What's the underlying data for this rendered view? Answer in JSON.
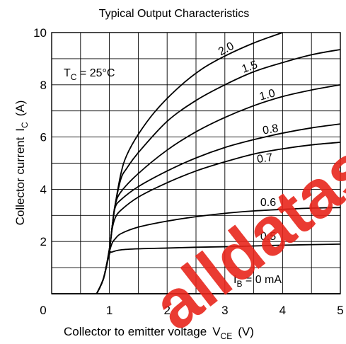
{
  "chart_data": {
    "type": "line",
    "title": "Typical Output Characteristics",
    "xlabel": "Collector to emitter voltage",
    "xlabel_symbol": "V",
    "xlabel_sub": "CE",
    "xlabel_unit": "(V)",
    "ylabel": "Collector current",
    "ylabel_symbol": "I",
    "ylabel_sub": "C",
    "ylabel_unit": "(A)",
    "xlim": [
      0,
      5
    ],
    "ylim": [
      0,
      10
    ],
    "x_ticks": [
      "0",
      "1",
      "2",
      "3",
      "4",
      "5"
    ],
    "y_ticks": [
      "2",
      "4",
      "6",
      "8",
      "10"
    ],
    "grid": true,
    "grid_x_step": 0.5,
    "grid_y_step": 1,
    "annotation": {
      "symbol": "T",
      "sub": "C",
      "text": " = 25°C"
    },
    "series": [
      {
        "label": "2.0",
        "points": [
          [
            0.78,
            0
          ],
          [
            0.9,
            0.6
          ],
          [
            1.0,
            1.7
          ],
          [
            1.05,
            2.6
          ],
          [
            1.1,
            3.4
          ],
          [
            1.2,
            4.6
          ],
          [
            1.3,
            5.3
          ],
          [
            1.5,
            6.1
          ],
          [
            1.8,
            7.0
          ],
          [
            2.2,
            7.9
          ],
          [
            2.6,
            8.6
          ],
          [
            3.0,
            9.1
          ],
          [
            3.5,
            9.6
          ],
          [
            4.0,
            10.0
          ]
        ]
      },
      {
        "label": "1.5",
        "points": [
          [
            0.78,
            0
          ],
          [
            0.9,
            0.6
          ],
          [
            1.0,
            1.7
          ],
          [
            1.05,
            2.6
          ],
          [
            1.1,
            3.4
          ],
          [
            1.2,
            4.4
          ],
          [
            1.3,
            4.8
          ],
          [
            1.5,
            5.4
          ],
          [
            2.0,
            6.6
          ],
          [
            2.5,
            7.4
          ],
          [
            3.0,
            8.0
          ],
          [
            3.5,
            8.5
          ],
          [
            4.0,
            8.85
          ],
          [
            4.5,
            9.15
          ],
          [
            5.0,
            9.35
          ]
        ]
      },
      {
        "label": "1.0",
        "points": [
          [
            0.78,
            0
          ],
          [
            0.9,
            0.6
          ],
          [
            1.0,
            1.7
          ],
          [
            1.05,
            2.6
          ],
          [
            1.1,
            3.4
          ],
          [
            1.2,
            3.9
          ],
          [
            1.5,
            4.6
          ],
          [
            2.0,
            5.5
          ],
          [
            2.5,
            6.2
          ],
          [
            3.0,
            6.75
          ],
          [
            3.5,
            7.2
          ],
          [
            4.0,
            7.55
          ],
          [
            4.5,
            7.8
          ],
          [
            5.0,
            8.0
          ]
        ]
      },
      {
        "label": "0.8",
        "points": [
          [
            0.78,
            0
          ],
          [
            0.9,
            0.6
          ],
          [
            1.0,
            1.7
          ],
          [
            1.05,
            2.6
          ],
          [
            1.1,
            3.3
          ],
          [
            1.2,
            3.6
          ],
          [
            1.5,
            4.1
          ],
          [
            2.0,
            4.7
          ],
          [
            2.5,
            5.2
          ],
          [
            3.0,
            5.6
          ],
          [
            3.5,
            5.9
          ],
          [
            4.0,
            6.15
          ],
          [
            4.5,
            6.35
          ],
          [
            5.0,
            6.5
          ]
        ]
      },
      {
        "label": "0.7",
        "points": [
          [
            0.78,
            0
          ],
          [
            0.9,
            0.6
          ],
          [
            1.0,
            1.7
          ],
          [
            1.05,
            2.5
          ],
          [
            1.1,
            2.9
          ],
          [
            1.2,
            3.2
          ],
          [
            1.5,
            3.7
          ],
          [
            2.0,
            4.25
          ],
          [
            2.5,
            4.7
          ],
          [
            3.0,
            5.05
          ],
          [
            3.5,
            5.35
          ],
          [
            4.0,
            5.55
          ],
          [
            4.5,
            5.7
          ],
          [
            5.0,
            5.8
          ]
        ]
      },
      {
        "label": "0.6",
        "points": [
          [
            0.78,
            0
          ],
          [
            0.9,
            0.6
          ],
          [
            1.0,
            1.6
          ],
          [
            1.05,
            1.95
          ],
          [
            1.1,
            2.1
          ],
          [
            1.2,
            2.3
          ],
          [
            1.5,
            2.55
          ],
          [
            2.0,
            2.78
          ],
          [
            2.5,
            2.95
          ],
          [
            3.0,
            3.08
          ],
          [
            3.5,
            3.17
          ],
          [
            4.0,
            3.23
          ],
          [
            4.5,
            3.28
          ],
          [
            5.0,
            3.3
          ]
        ]
      },
      {
        "label": "0.5",
        "points": [
          [
            0.78,
            0
          ],
          [
            0.9,
            0.6
          ],
          [
            1.0,
            1.5
          ],
          [
            1.05,
            1.6
          ],
          [
            1.2,
            1.68
          ],
          [
            1.5,
            1.72
          ],
          [
            2.0,
            1.75
          ],
          [
            2.5,
            1.78
          ],
          [
            3.0,
            1.8
          ],
          [
            3.5,
            1.83
          ],
          [
            4.0,
            1.86
          ],
          [
            4.5,
            1.88
          ],
          [
            5.0,
            1.9
          ]
        ]
      }
    ],
    "baseline_label": {
      "symbol": "I",
      "sub": "B",
      "text": " = 0 mA"
    }
  },
  "watermark_text": "alldatasheet"
}
